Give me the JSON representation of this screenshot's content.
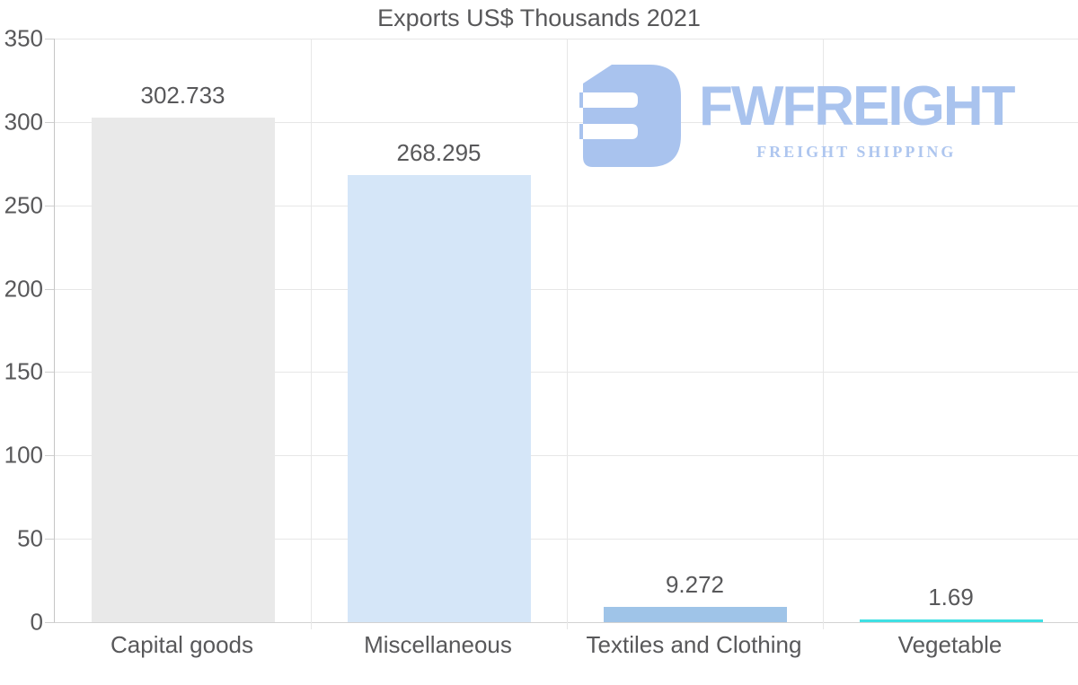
{
  "page": {
    "background": "#ffffff"
  },
  "chart_data": {
    "type": "bar",
    "title": "Exports US$ Thousands 2021",
    "categories": [
      "Capital goods",
      "Miscellaneous",
      "Textiles and Clothing",
      "Vegetable"
    ],
    "values": [
      302.733,
      268.295,
      9.272,
      1.69
    ],
    "value_labels": [
      "302.733",
      "268.295",
      "9.272",
      "1.69"
    ],
    "bar_colors": [
      "#e9e9e9",
      "#d5e6f8",
      "#9fc4e8",
      "#3fe0e4"
    ],
    "ylim": [
      0,
      350
    ],
    "yticks": [
      "0",
      "50",
      "100",
      "150",
      "200",
      "250",
      "300",
      "350"
    ],
    "grid": true,
    "legend": false,
    "xlabel": "",
    "ylabel": ""
  },
  "watermark": {
    "brand": "FWFREIGHT",
    "tagline": "FREIGHT SHIPPING",
    "logo_icon": "stylized-f-freight-icon",
    "color": "#a9c3ee"
  },
  "style": {
    "text_color": "#58585a",
    "gridline_color": "#e7e7e7",
    "axis_color": "#c6c6c6",
    "baseline_color": "#d2d2d2"
  }
}
